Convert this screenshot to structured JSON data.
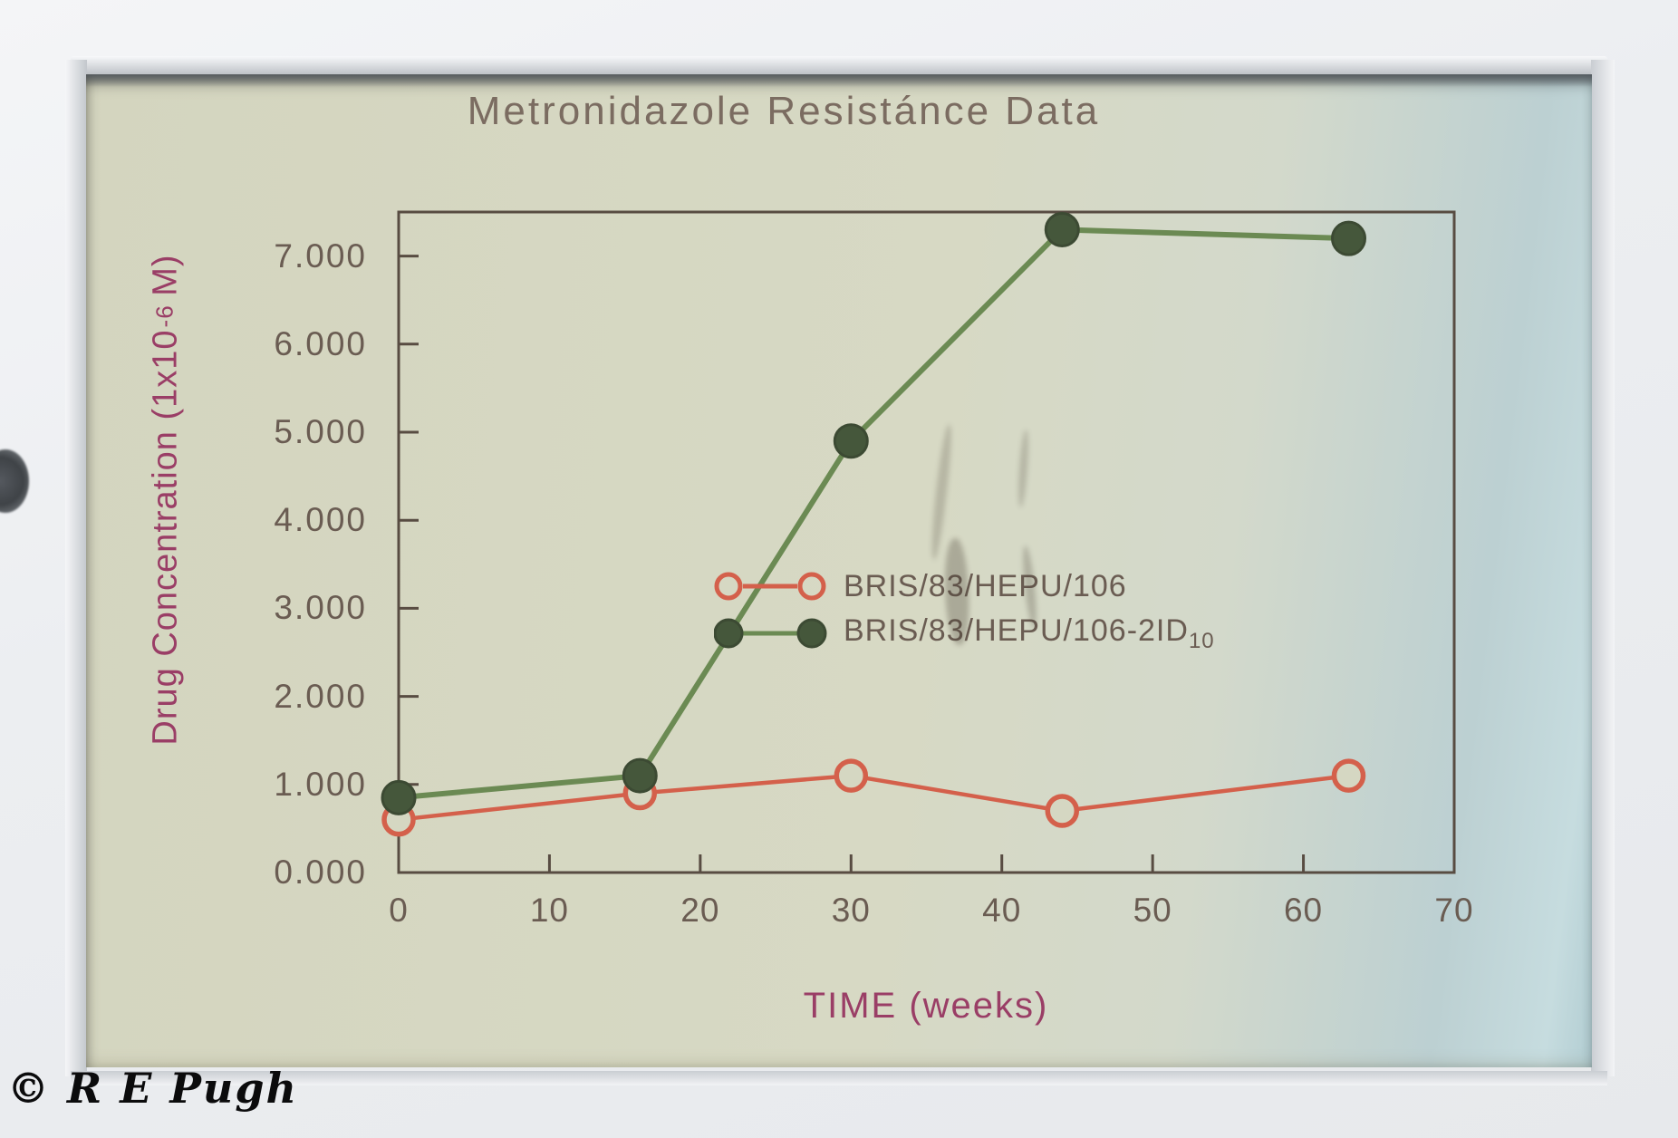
{
  "chart_data": {
    "type": "line",
    "title": "Metronidazole Resistánce Data",
    "xlabel": "TIME (weeks)",
    "ylabel": "Drug Concentration (1x10^-6 M)",
    "ylabel_parts": {
      "prefix": "Drug Concentration (1x10",
      "exponent": "-6",
      "suffix": " M)"
    },
    "xlim": [
      0,
      70
    ],
    "ylim": [
      0,
      7.5
    ],
    "x_ticks": [
      0,
      10,
      20,
      30,
      40,
      50,
      60,
      70
    ],
    "y_tick_labels": [
      "0.000",
      "1.000",
      "2.000",
      "3.000",
      "4.000",
      "5.000",
      "6.000",
      "7.000"
    ],
    "grid": false,
    "legend_position": "inside-middle-right",
    "series": [
      {
        "name": "BRIS/83/HEPU/106",
        "name_subscript": "",
        "marker": "open-circle",
        "line_color": "#d4604b",
        "marker_stroke": "#d4604b",
        "marker_fill": "none",
        "x": [
          0,
          16,
          30,
          44,
          63
        ],
        "y": [
          0.6,
          0.9,
          1.1,
          0.7,
          1.1
        ]
      },
      {
        "name": "BRIS/83/HEPU/106-2ID",
        "name_subscript": "10",
        "marker": "filled-circle",
        "line_color": "#6b8a53",
        "marker_stroke": "#3c4a33",
        "marker_fill": "#45573b",
        "x": [
          0,
          16,
          30,
          44,
          63
        ],
        "y": [
          0.85,
          1.1,
          4.9,
          7.3,
          7.2
        ]
      }
    ]
  },
  "footer": {
    "copyright": "© R E Pugh"
  },
  "colors": {
    "slide_bg": "#d5d7c2",
    "frame": "#584c42",
    "tick_text": "#6a5c52",
    "title_text": "#7b6c61",
    "axis_label_text": "#9a3e66",
    "red_series": "#d4604b",
    "green_line": "#6b8a53",
    "green_marker_fill": "#45573b"
  }
}
